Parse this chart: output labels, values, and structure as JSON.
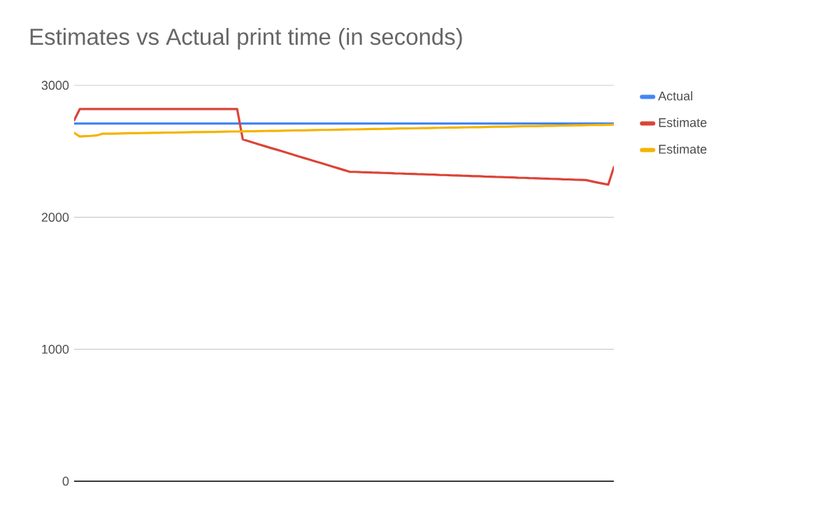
{
  "chart_data": {
    "type": "line",
    "title": "Estimates vs Actual print time (in seconds)",
    "categories": [
      null,
      null,
      null,
      null,
      null,
      null,
      null,
      null,
      null,
      null,
      null,
      null,
      null,
      null,
      null,
      null,
      null,
      null,
      null,
      null,
      null,
      null,
      null,
      null,
      null,
      null,
      null,
      null,
      null,
      null,
      null,
      null,
      null,
      null,
      null,
      null,
      null,
      null,
      null,
      null,
      null,
      null,
      null,
      null,
      null,
      null,
      null,
      null,
      null,
      null,
      null,
      null,
      null,
      null,
      null,
      null,
      null,
      null,
      null,
      null,
      null,
      null,
      null,
      null,
      null,
      null,
      null,
      null,
      null,
      null,
      null,
      null,
      null,
      null,
      null,
      null,
      null,
      null,
      null,
      null,
      null,
      null,
      null,
      null,
      null,
      null,
      null,
      null,
      null,
      null,
      null,
      null,
      null,
      null,
      null,
      null,
      null
    ],
    "series": [
      {
        "name": "Actual",
        "color": "#4285f4",
        "values": [
          2710,
          2710,
          2710,
          2710,
          2710,
          2710,
          2710,
          2710,
          2710,
          2710,
          2710,
          2710,
          2710,
          2710,
          2710,
          2710,
          2710,
          2710,
          2710,
          2710,
          2710,
          2710,
          2710,
          2710,
          2710,
          2710,
          2710,
          2710,
          2710,
          2710,
          2710,
          2710,
          2710,
          2710,
          2710,
          2710,
          2710,
          2710,
          2710,
          2710,
          2710,
          2710,
          2710,
          2710,
          2710,
          2710,
          2710,
          2710,
          2710,
          2710,
          2710,
          2710,
          2710,
          2710,
          2710,
          2710,
          2710,
          2710,
          2710,
          2710,
          2710,
          2710,
          2710,
          2710,
          2710,
          2710,
          2710,
          2710,
          2710,
          2710,
          2710,
          2710,
          2710,
          2710,
          2710,
          2710,
          2710,
          2710,
          2710,
          2710,
          2710,
          2710,
          2710,
          2710,
          2710,
          2710,
          2710,
          2710,
          2710,
          2710,
          2710,
          2710,
          2710,
          2710,
          2710,
          2710,
          2710
        ]
      },
      {
        "name": "Estimate",
        "color": "#db4437",
        "values": [
          2735,
          2820,
          2820,
          2820,
          2820,
          2820,
          2820,
          2820,
          2820,
          2820,
          2820,
          2820,
          2820,
          2820,
          2820,
          2820,
          2820,
          2820,
          2820,
          2820,
          2820,
          2820,
          2820,
          2820,
          2820,
          2820,
          2820,
          2820,
          2820,
          2820,
          2590,
          2577,
          2564,
          2551,
          2538,
          2525,
          2513,
          2500,
          2487,
          2474,
          2461,
          2448,
          2435,
          2422,
          2410,
          2397,
          2384,
          2371,
          2358,
          2345,
          2344,
          2342,
          2341,
          2339,
          2338,
          2336,
          2335,
          2333,
          2332,
          2330,
          2329,
          2327,
          2326,
          2324,
          2323,
          2321,
          2320,
          2318,
          2317,
          2315,
          2314,
          2312,
          2311,
          2309,
          2308,
          2306,
          2305,
          2303,
          2302,
          2300,
          2299,
          2297,
          2296,
          2294,
          2293,
          2291,
          2290,
          2288,
          2287,
          2285,
          2284,
          2282,
          2273,
          2264,
          2256,
          2247,
          2380
        ]
      },
      {
        "name": "Estimate",
        "color": "#f4b400",
        "values": [
          2640,
          2612,
          2615,
          2617,
          2620,
          2633,
          2634,
          2634,
          2635,
          2636,
          2637,
          2637,
          2638,
          2639,
          2640,
          2640,
          2641,
          2642,
          2642,
          2643,
          2644,
          2645,
          2645,
          2646,
          2647,
          2647,
          2648,
          2649,
          2650,
          2650,
          2651,
          2652,
          2652,
          2653,
          2654,
          2655,
          2655,
          2656,
          2657,
          2658,
          2659,
          2659,
          2660,
          2661,
          2662,
          2662,
          2663,
          2664,
          2665,
          2666,
          2666,
          2667,
          2668,
          2669,
          2669,
          2670,
          2671,
          2672,
          2673,
          2673,
          2674,
          2675,
          2676,
          2676,
          2677,
          2678,
          2679,
          2680,
          2680,
          2681,
          2682,
          2683,
          2683,
          2684,
          2685,
          2686,
          2686,
          2687,
          2688,
          2689,
          2690,
          2690,
          2691,
          2692,
          2693,
          2693,
          2694,
          2695,
          2696,
          2697,
          2697,
          2698,
          2699,
          2700,
          2700,
          2701,
          2702
        ]
      }
    ],
    "ylim": [
      0,
      3000
    ],
    "yticks": [
      0,
      1000,
      2000,
      3000
    ],
    "grid": "y",
    "legend": "right",
    "marker": "none",
    "line_style": "solid"
  }
}
